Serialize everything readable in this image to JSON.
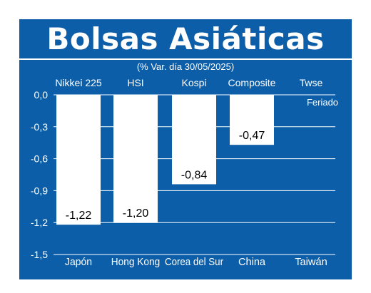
{
  "title": "Bolsas Asiáticas",
  "subtitle": "(% Var. día 30/05/2025)",
  "colors": {
    "background": "#0c5ea8",
    "bars": "#ffffff",
    "text": "#ffffff",
    "value_text": "#000000"
  },
  "chart_data": {
    "type": "bar",
    "title": "Bolsas Asiáticas",
    "subtitle": "(% Var. día 30/05/2025)",
    "categories": [
      "Japón",
      "Hong Kong",
      "Corea del Sur",
      "China",
      "Taiwán"
    ],
    "index_names": [
      "Nikkei 225",
      "HSI",
      "Kospi",
      "Composite",
      "Twse"
    ],
    "values": [
      -1.22,
      -1.2,
      -0.84,
      -0.47,
      null
    ],
    "value_labels": [
      "-1,22",
      "-1,20",
      "-0,84",
      "-0,47",
      ""
    ],
    "annotations": [
      "",
      "",
      "",
      "",
      "Feriado"
    ],
    "y_ticks": [
      "0,0",
      "-0,3",
      "-0,6",
      "-0,9",
      "-1,2",
      "-1,5"
    ],
    "y_tick_values": [
      0,
      -0.3,
      -0.6,
      -0.9,
      -1.2,
      -1.5
    ],
    "ylim": [
      -1.5,
      0
    ],
    "grid": true,
    "xlabel": "",
    "ylabel": ""
  }
}
